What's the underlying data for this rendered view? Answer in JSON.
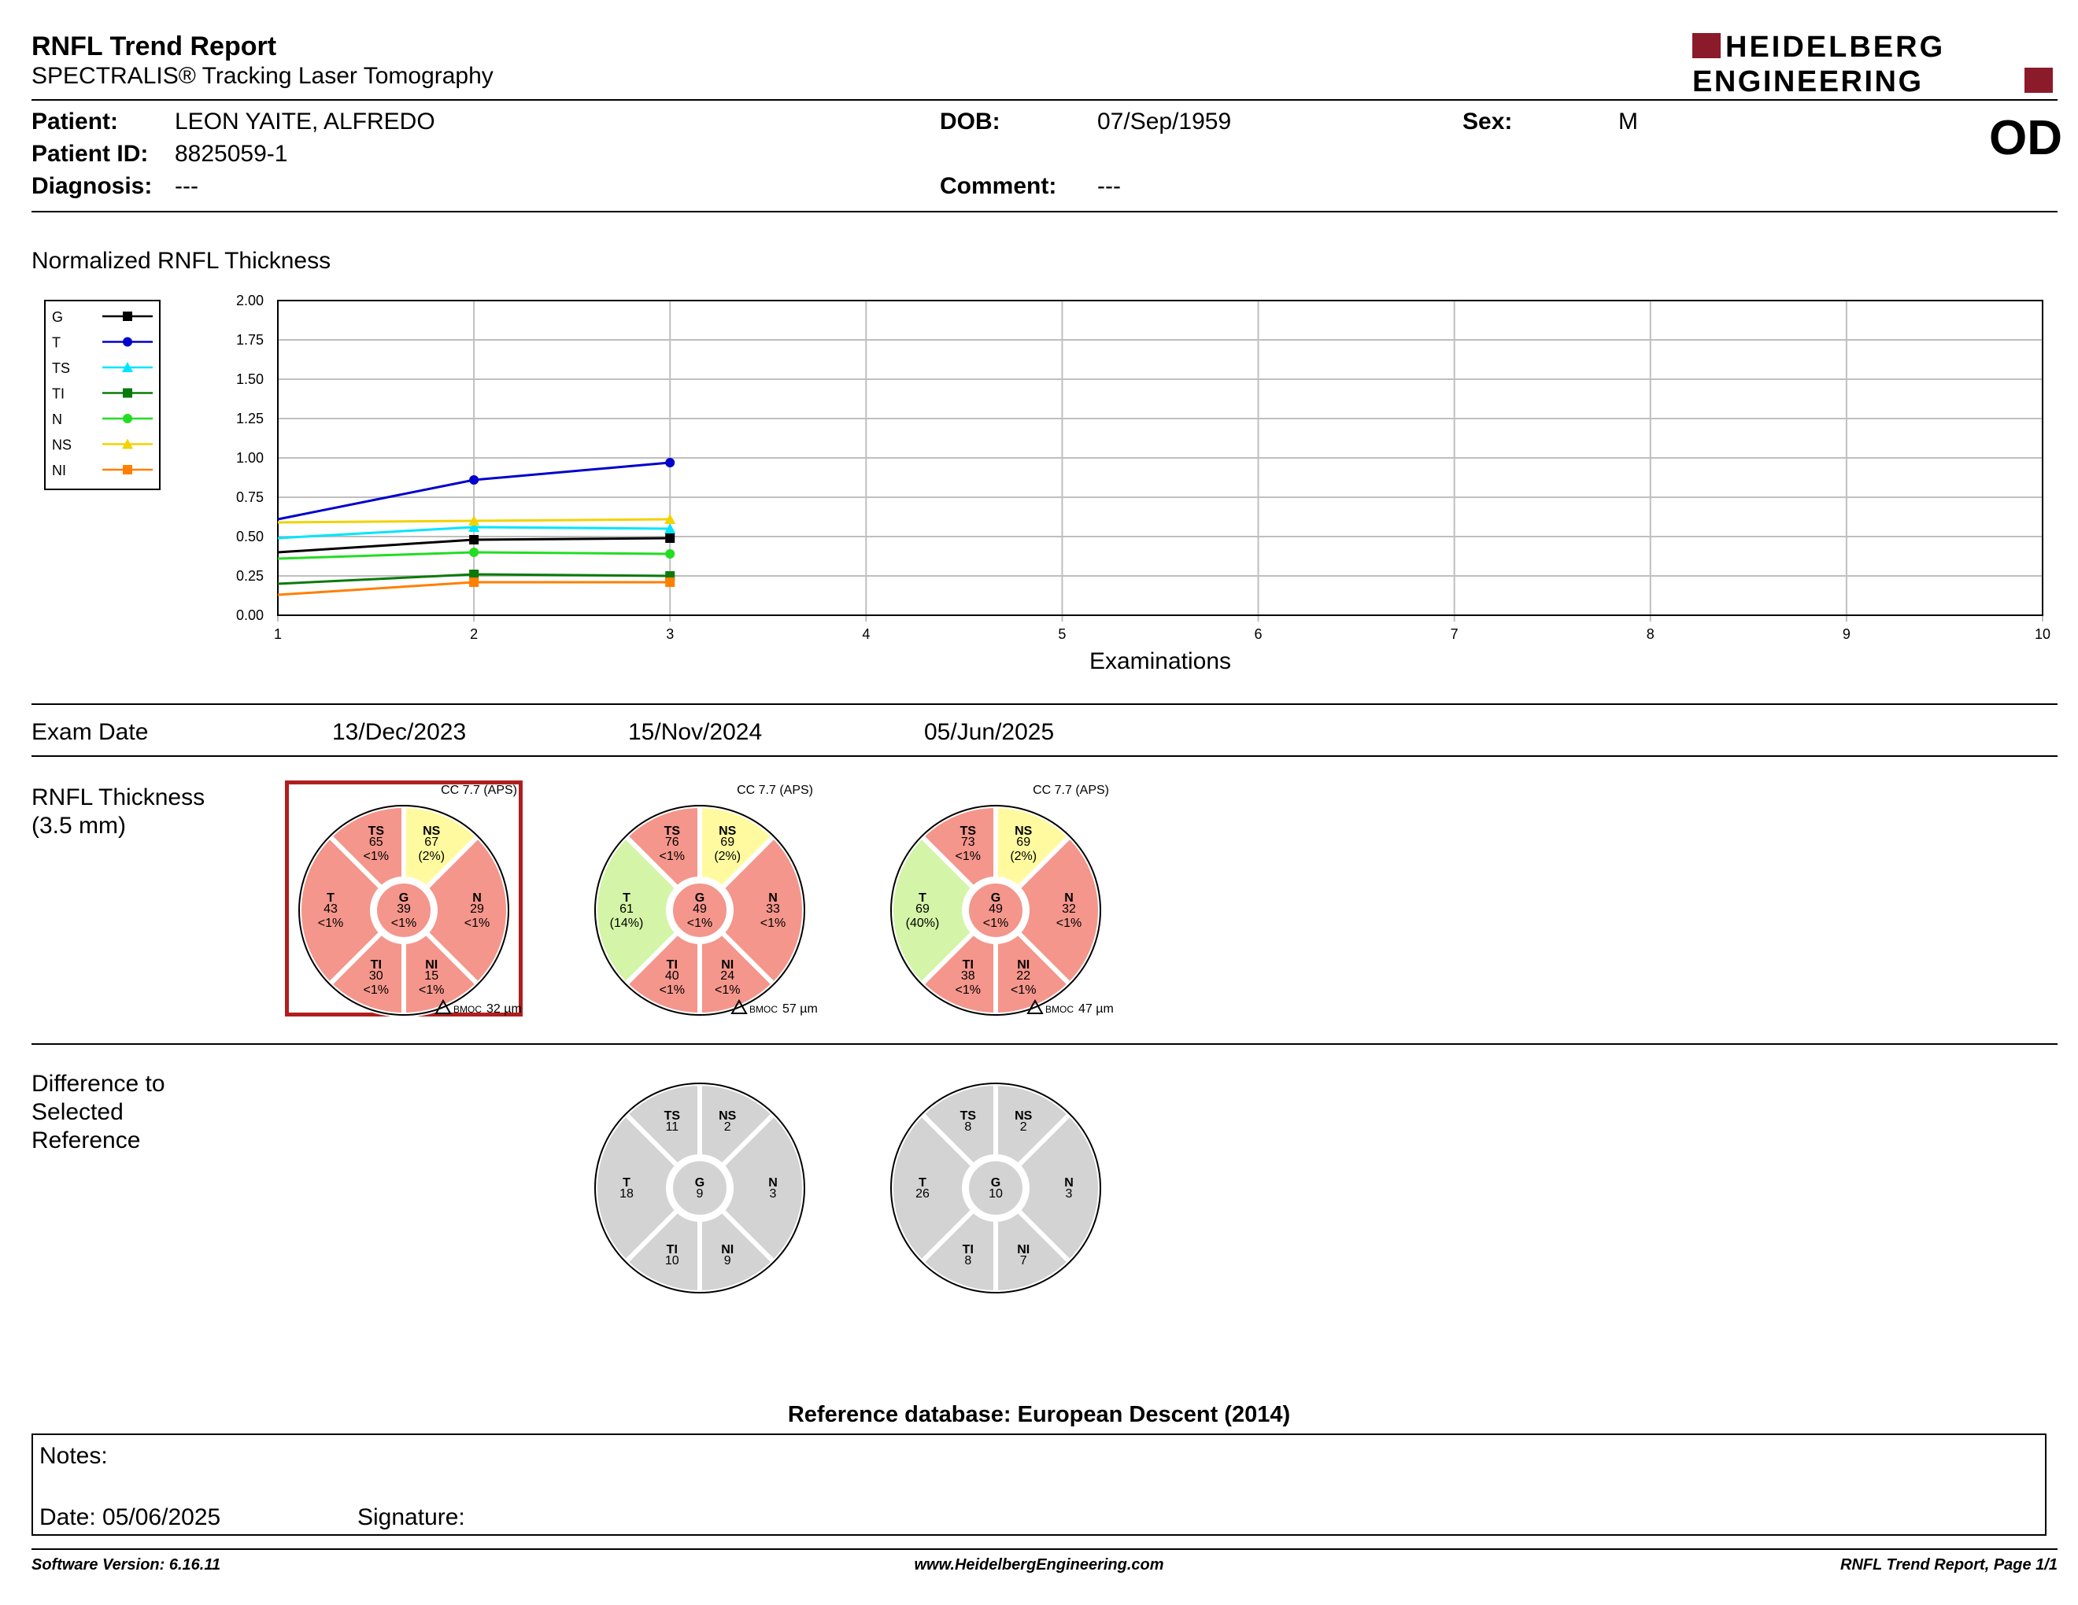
{
  "header": {
    "title": "RNFL Trend Report",
    "subtitle": "SPECTRALIS® Tracking Laser Tomography",
    "logo_line1": "HEIDELBERG",
    "logo_line2": "ENGINEERING",
    "brand_color": "#8b1a2b"
  },
  "patient": {
    "name_label": "Patient:",
    "name": "LEON YAITE, ALFREDO",
    "id_label": "Patient ID:",
    "id": "8825059-1",
    "diagnosis_label": "Diagnosis:",
    "diagnosis": "---",
    "dob_label": "DOB:",
    "dob": "07/Sep/1959",
    "comment_label": "Comment:",
    "comment": "---",
    "sex_label": "Sex:",
    "sex": "M",
    "eye": "OD"
  },
  "trend": {
    "section_title": "Normalized RNFL Thickness"
  },
  "chart_data": {
    "type": "line",
    "xlabel": "Examinations",
    "ylabel": "",
    "x": [
      1,
      2,
      3
    ],
    "xlim": [
      1,
      10
    ],
    "xticks": [
      "1",
      "2",
      "3",
      "4",
      "5",
      "6",
      "7",
      "8",
      "9",
      "10"
    ],
    "ylim": [
      0,
      2
    ],
    "yticks": [
      "0.00",
      "0.25",
      "0.50",
      "0.75",
      "1.00",
      "1.25",
      "1.50",
      "1.75",
      "2.00"
    ],
    "grid": true,
    "legend_position": "left",
    "series": [
      {
        "name": "G",
        "color": "#000000",
        "marker": "square",
        "values": [
          0.4,
          0.48,
          0.49
        ]
      },
      {
        "name": "T",
        "color": "#0000cc",
        "marker": "circle",
        "values": [
          0.61,
          0.86,
          0.97
        ]
      },
      {
        "name": "TS",
        "color": "#00e5ff",
        "marker": "triangle",
        "values": [
          0.49,
          0.56,
          0.55
        ]
      },
      {
        "name": "TI",
        "color": "#0a7a0a",
        "marker": "square",
        "values": [
          0.2,
          0.26,
          0.25
        ]
      },
      {
        "name": "N",
        "color": "#22dd22",
        "marker": "circle",
        "values": [
          0.36,
          0.4,
          0.39
        ]
      },
      {
        "name": "NS",
        "color": "#f2d200",
        "marker": "triangle",
        "values": [
          0.59,
          0.6,
          0.61
        ]
      },
      {
        "name": "NI",
        "color": "#ff7f00",
        "marker": "square",
        "values": [
          0.13,
          0.21,
          0.21
        ]
      }
    ]
  },
  "exams": {
    "date_label": "Exam Date",
    "dates": [
      "13/Dec/2023",
      "15/Nov/2024",
      "05/Jun/2025"
    ],
    "thickness_label_line1": "RNFL Thickness",
    "thickness_label_line2": "(3.5 mm)",
    "cc_labels": [
      "CC 7.7 (APS)",
      "CC 7.7 (APS)",
      "CC 7.7 (APS)"
    ],
    "bmoc_prefix": "BMOC",
    "bmoc_values": [
      "32 µm",
      "57 µm",
      "47 µm"
    ],
    "thickness_maps": [
      {
        "TS": {
          "value": "65",
          "pct": "<1%",
          "color": "#f4968c"
        },
        "NS": {
          "value": "67",
          "pct": "(2%)",
          "color": "#fffaa0"
        },
        "T": {
          "value": "43",
          "pct": "<1%",
          "color": "#f4968c"
        },
        "G": {
          "value": "39",
          "pct": "<1%",
          "color": "#f4968c"
        },
        "N": {
          "value": "29",
          "pct": "<1%",
          "color": "#f4968c"
        },
        "TI": {
          "value": "30",
          "pct": "<1%",
          "color": "#f4968c"
        },
        "NI": {
          "value": "15",
          "pct": "<1%",
          "color": "#f4968c"
        }
      },
      {
        "TS": {
          "value": "76",
          "pct": "<1%",
          "color": "#f4968c"
        },
        "NS": {
          "value": "69",
          "pct": "(2%)",
          "color": "#fffaa0"
        },
        "T": {
          "value": "61",
          "pct": "(14%)",
          "color": "#d4f5a8"
        },
        "G": {
          "value": "49",
          "pct": "<1%",
          "color": "#f4968c"
        },
        "N": {
          "value": "33",
          "pct": "<1%",
          "color": "#f4968c"
        },
        "TI": {
          "value": "40",
          "pct": "<1%",
          "color": "#f4968c"
        },
        "NI": {
          "value": "24",
          "pct": "<1%",
          "color": "#f4968c"
        }
      },
      {
        "TS": {
          "value": "73",
          "pct": "<1%",
          "color": "#f4968c"
        },
        "NS": {
          "value": "69",
          "pct": "(2%)",
          "color": "#fffaa0"
        },
        "T": {
          "value": "69",
          "pct": "(40%)",
          "color": "#d4f5a8"
        },
        "G": {
          "value": "49",
          "pct": "<1%",
          "color": "#f4968c"
        },
        "N": {
          "value": "32",
          "pct": "<1%",
          "color": "#f4968c"
        },
        "TI": {
          "value": "38",
          "pct": "<1%",
          "color": "#f4968c"
        },
        "NI": {
          "value": "22",
          "pct": "<1%",
          "color": "#f4968c"
        }
      }
    ],
    "selected_reference_color": "#b01e1e",
    "difference_label_line1": "Difference to",
    "difference_label_line2": "Selected",
    "difference_label_line3": "Reference",
    "difference_color": "#d3d3d3",
    "difference_maps": [
      {
        "TS": "11",
        "NS": "2",
        "T": "18",
        "G": "9",
        "N": "3",
        "TI": "10",
        "NI": "9"
      },
      {
        "TS": "8",
        "NS": "2",
        "T": "26",
        "G": "10",
        "N": "3",
        "TI": "8",
        "NI": "7"
      }
    ]
  },
  "reference_db": "Reference database: European Descent (2014)",
  "notes": {
    "notes_label": "Notes:",
    "date_label": "Date: 05/06/2025",
    "signature_label": "Signature:"
  },
  "footer": {
    "software": "Software Version: 6.16.11",
    "website": "www.HeidelbergEngineering.com",
    "page": "RNFL Trend Report, Page 1/1"
  }
}
